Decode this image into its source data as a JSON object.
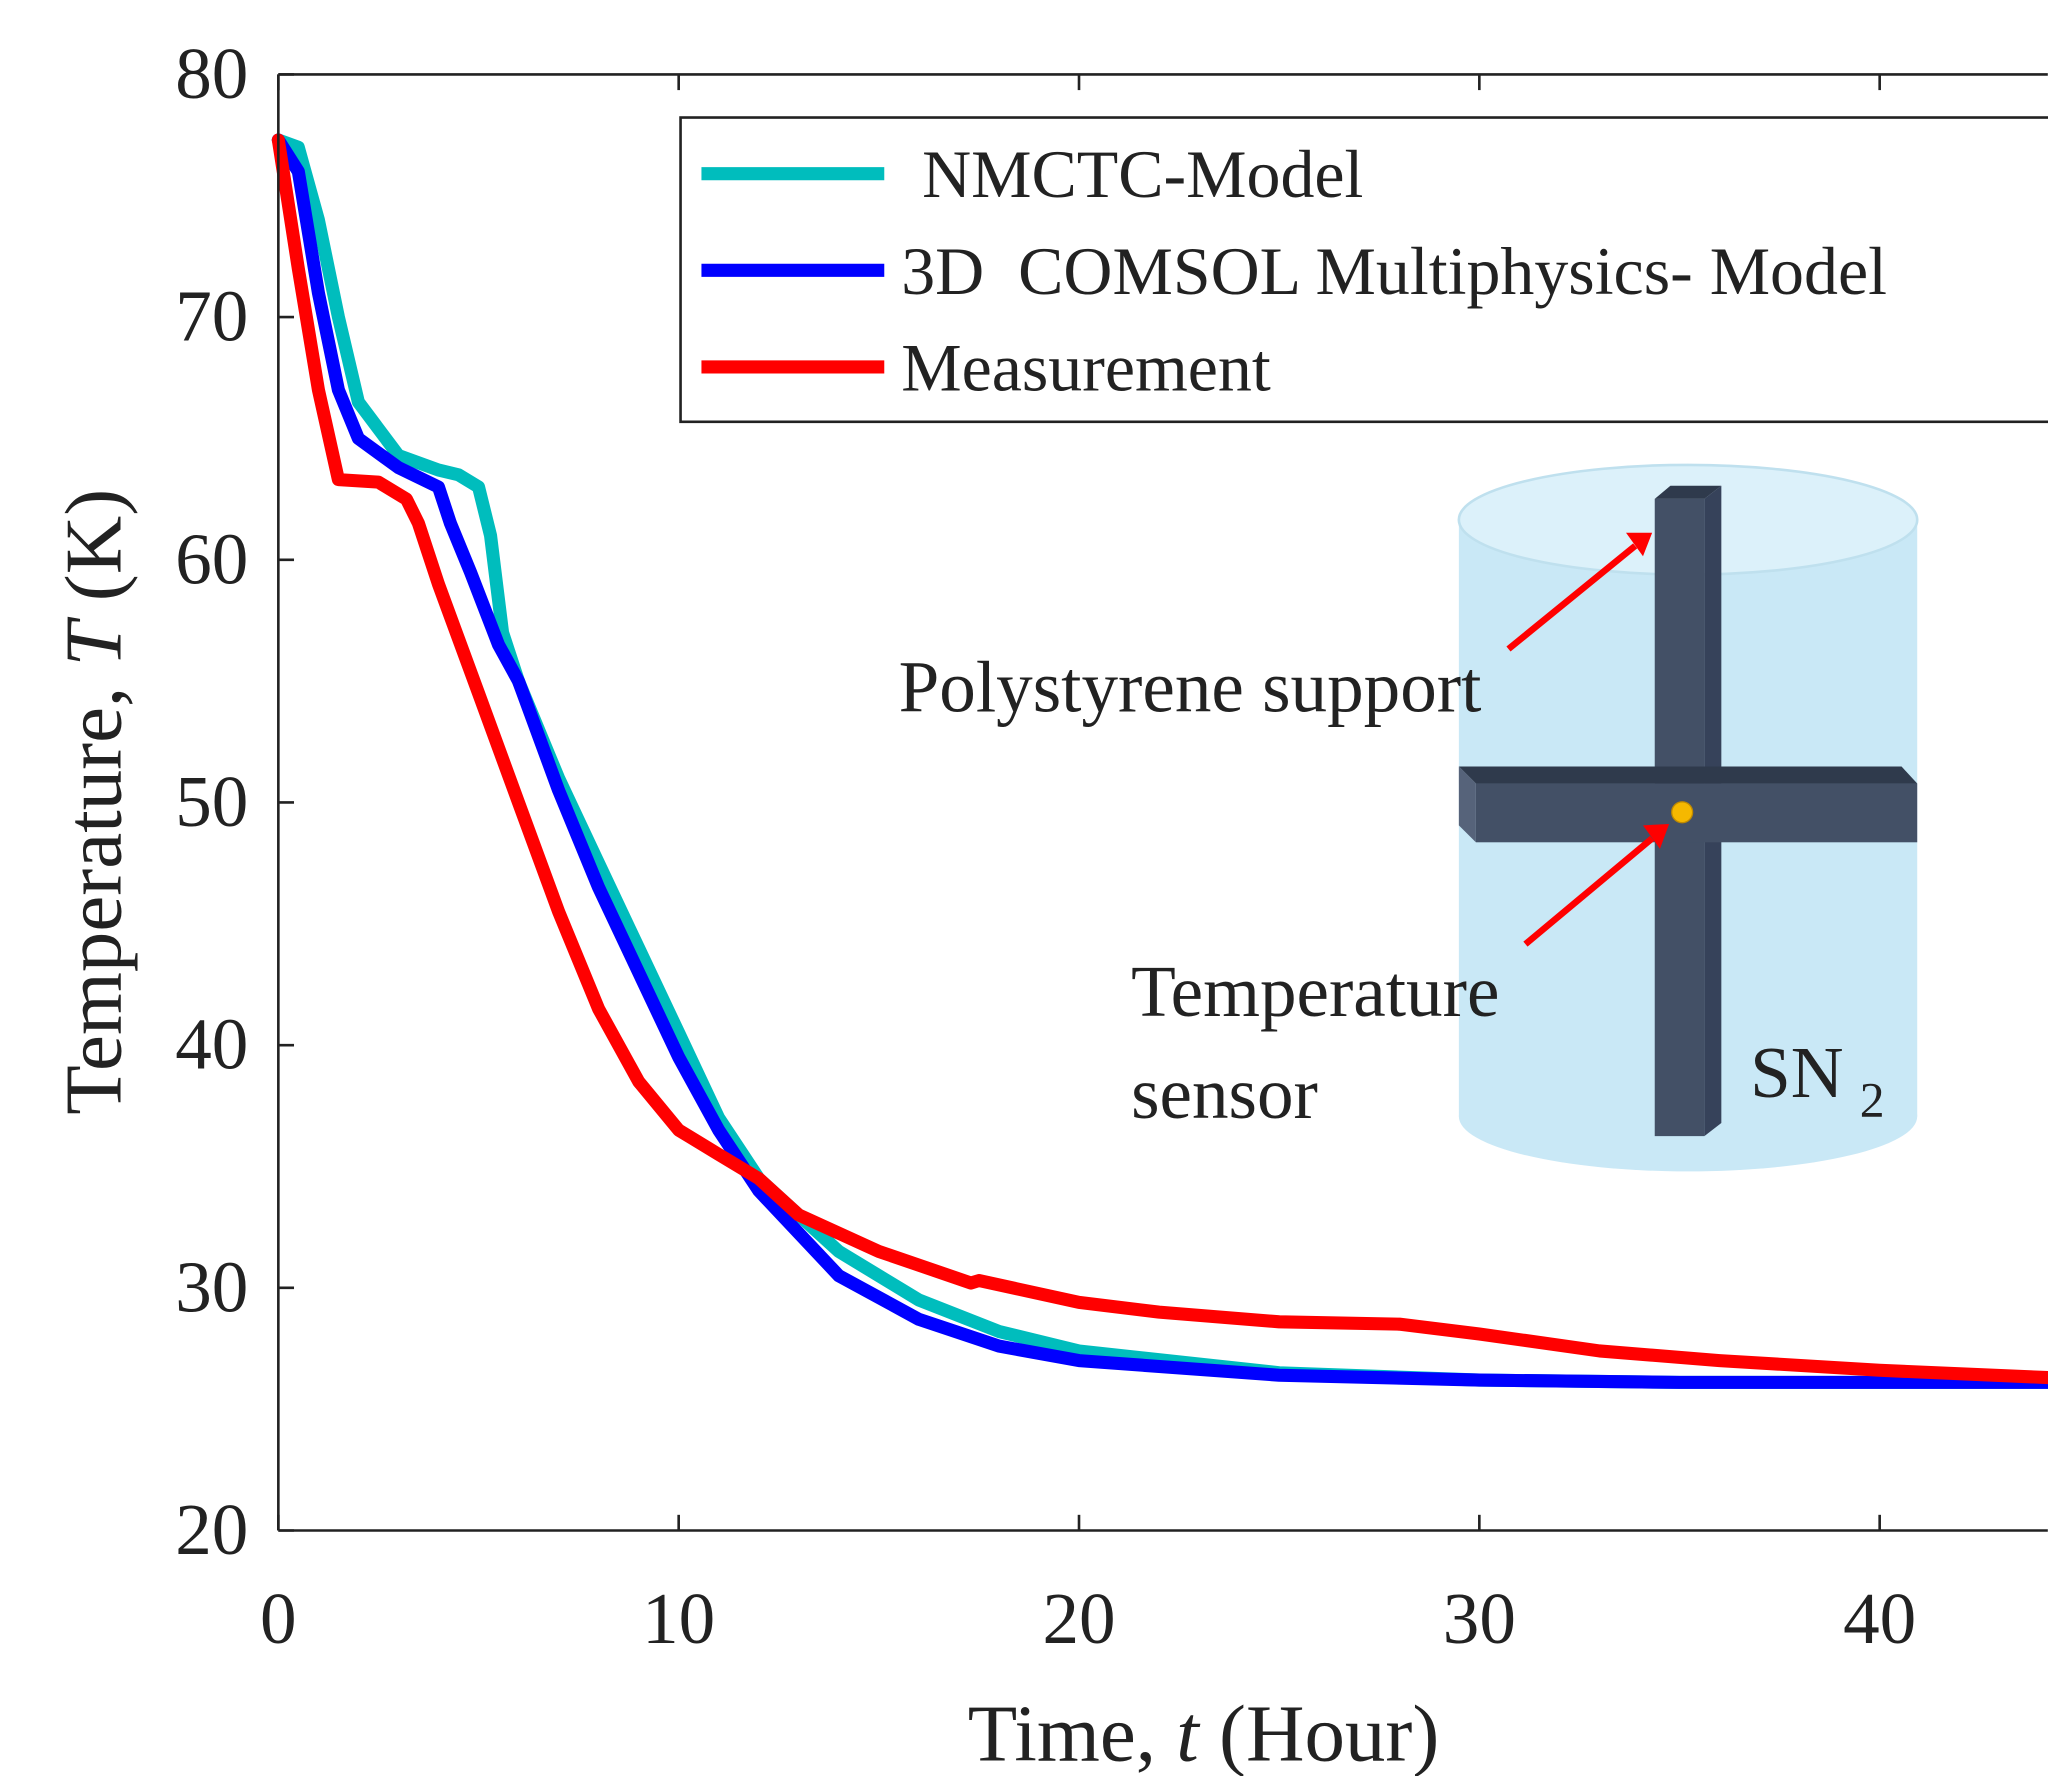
{
  "chart_data": {
    "type": "line",
    "xlabel": [
      "Time, ",
      "t",
      " (Hour)"
    ],
    "ylabel": [
      "Temperature, ",
      "T",
      " (K)"
    ],
    "xlim": [
      0,
      44.2
    ],
    "xticks": [
      0,
      10,
      20,
      30,
      40
    ],
    "ylim": [
      20,
      80
    ],
    "yticks": [
      20,
      30,
      40,
      50,
      60,
      70,
      80
    ],
    "grid": false,
    "legend": "upper right",
    "series": [
      {
        "name": "NMCTC-Model",
        "color": "#00bdbd",
        "x": [
          0,
          0.5,
          1,
          1.5,
          2,
          3,
          4,
          4.5,
          5,
          5.3,
          5.6,
          6,
          7,
          8,
          9,
          10,
          11,
          12,
          14,
          16,
          18,
          20,
          25,
          30,
          35,
          44.2
        ],
        "values": [
          77.3,
          77,
          74,
          70,
          66.5,
          64.3,
          63.7,
          63.5,
          63,
          61,
          57,
          55,
          51,
          47.5,
          44,
          40.5,
          37,
          34.5,
          31.5,
          29.5,
          28.2,
          27.4,
          26.5,
          26.2,
          26.1,
          26.1
        ]
      },
      {
        "name": "3D  COMSOL Multiphysics- Model",
        "color": "#0000ff",
        "x": [
          0,
          0.5,
          1,
          1.5,
          2,
          3,
          4,
          4.3,
          4.8,
          5.5,
          6,
          7,
          8,
          9,
          10,
          11,
          12,
          14,
          16,
          18,
          20,
          25,
          30,
          35,
          44.2
        ],
        "values": [
          77.3,
          76,
          71,
          67,
          65,
          63.8,
          63,
          61.5,
          59.5,
          56.5,
          55,
          50.5,
          46.5,
          43,
          39.5,
          36.5,
          34,
          30.5,
          28.7,
          27.6,
          27,
          26.4,
          26.2,
          26.1,
          26.1
        ]
      },
      {
        "name": "Measurement",
        "color": "#ff0000",
        "x": [
          0,
          0.5,
          1,
          1.5,
          2.5,
          3.2,
          3.5,
          4,
          5,
          6,
          7,
          8,
          9,
          10,
          11,
          12,
          13,
          15,
          17.3,
          17.5,
          20,
          22,
          25,
          28,
          30,
          33,
          36,
          40,
          44.2
        ],
        "values": [
          77.3,
          72,
          67,
          63.3,
          63.2,
          62.5,
          61.5,
          59,
          54.5,
          50,
          45.5,
          41.5,
          38.5,
          36.5,
          35.5,
          34.5,
          33,
          31.5,
          30.2,
          30.3,
          29.4,
          29,
          28.6,
          28.5,
          28.1,
          27.4,
          27,
          26.6,
          26.3
        ]
      }
    ],
    "annotations": {
      "support": "Polystyrene support",
      "sensor": [
        "Temperature",
        "sensor"
      ],
      "medium": "SN",
      "medium_subscript": "2"
    }
  }
}
